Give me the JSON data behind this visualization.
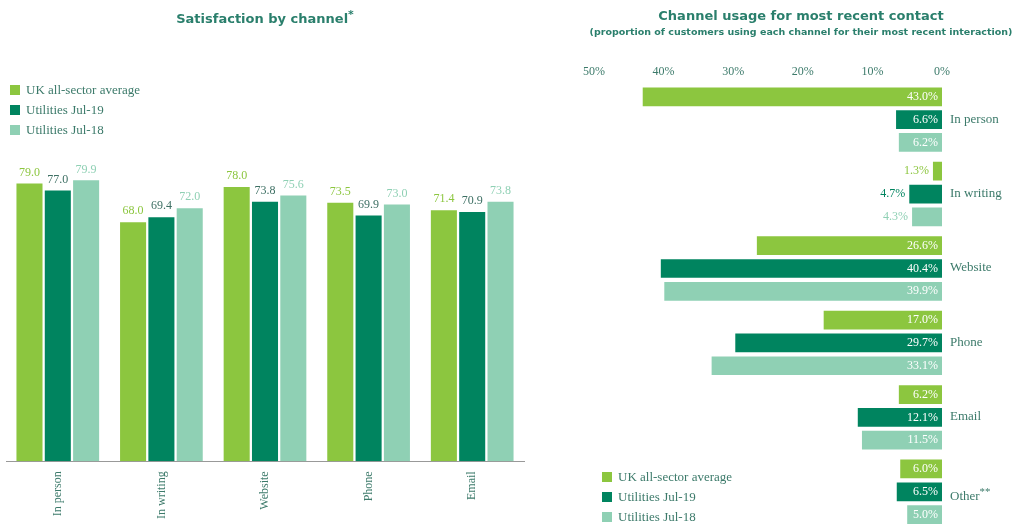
{
  "chart_data": [
    {
      "type": "bar",
      "title": "Satisfaction by channel$^{*}$",
      "categories": [
        "In person",
        "In writing",
        "Website",
        "Phone",
        "Email"
      ],
      "tick_labels": "x",
      "grid": false,
      "legend": "top left",
      "series": [
        {
          "name": "UK all-sector average",
          "color": "#8cc63f",
          "values": [
            79.0,
            68.0,
            78.0,
            73.5,
            71.4
          ],
          "value_labels": [
            "79.0",
            "68.0",
            "78.0",
            "73.5",
            "71.4"
          ]
        },
        {
          "name": "Utilities Jul-19",
          "color": "#00845f",
          "values": [
            77.0,
            69.4,
            73.8,
            69.9,
            70.9
          ],
          "value_labels": [
            "77.0",
            "69.4",
            "73.8",
            "69.9",
            "70.9"
          ]
        },
        {
          "name": "Utilities Jul-18",
          "color": "#8fd0b4",
          "values": [
            79.9,
            72.0,
            75.6,
            73.0,
            73.8
          ],
          "value_labels": [
            "79.9",
            "72.0",
            "75.6",
            "73.0",
            "73.8"
          ]
        }
      ]
    },
    {
      "type": "bar",
      "orientation": "horizontal",
      "title": "Channel usage for most recent contact",
      "subtitle": "(proportion of customers using each channel for their most recent interaction)",
      "categories": [
        "In person",
        "In writing",
        "Website",
        "Phone",
        "Email",
        "Other$^{**}$"
      ],
      "xlim": [
        50,
        0
      ],
      "xticks": [
        {
          "value": 50,
          "label": "50%"
        },
        {
          "value": 40,
          "label": "40%"
        },
        {
          "value": 30,
          "label": "30%"
        },
        {
          "value": 20,
          "label": "20%"
        },
        {
          "value": 10,
          "label": "10%"
        },
        {
          "value": 0,
          "label": "0%"
        }
      ],
      "grid": false,
      "legend": "bottom left",
      "series": [
        {
          "name": "UK all-sector average",
          "color": "#8cc63f",
          "values": [
            43.0,
            1.3,
            26.6,
            17.0,
            6.2,
            6.0
          ],
          "value_labels": [
            "43.0%",
            "1.3%",
            "26.6%",
            "17.0%",
            "6.2%",
            "6.0%"
          ]
        },
        {
          "name": "Utilities Jul-19",
          "color": "#00845f",
          "values": [
            6.6,
            4.7,
            40.4,
            29.7,
            12.1,
            6.5
          ],
          "value_labels": [
            "6.6%",
            "4.7%",
            "40.4%",
            "29.7%",
            "12.1%",
            "6.5%"
          ]
        },
        {
          "name": "Utilities Jul-18",
          "color": "#8fd0b4",
          "values": [
            6.2,
            4.3,
            39.9,
            33.1,
            11.5,
            5.0
          ],
          "value_labels": [
            "6.2%",
            "4.3%",
            "39.9%",
            "33.1%",
            "11.5%",
            "5.0%"
          ]
        }
      ]
    }
  ]
}
